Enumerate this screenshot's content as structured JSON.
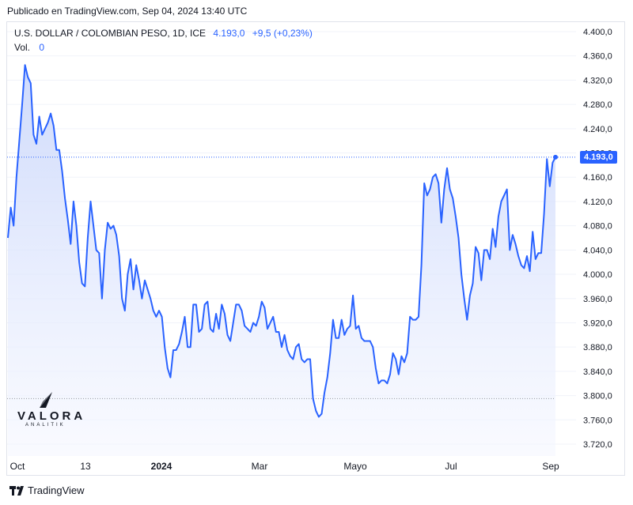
{
  "header": {
    "published": "Publicado en TradingView.com, Sep 04, 2024 13:40 UTC"
  },
  "legend": {
    "symbol": "U.S. DOLLAR / COLOMBIAN PESO, 1D, ICE",
    "value": "4.193,0",
    "change": "+9,5 (+0,23%)",
    "vol_label": "Vol.",
    "vol_value": "0"
  },
  "price_tag": "4.193,0",
  "watermark": {
    "name": "VALORA",
    "sub": "ANALITIK"
  },
  "footer": {
    "brand": "TradingView"
  },
  "colors": {
    "line": "#2962ff",
    "area_top": "#c9d6fb",
    "area_bottom": "#f5f7ff",
    "grid": "#f0f3fa",
    "tag": "#2962ff"
  },
  "chart_data": {
    "type": "area",
    "title": "",
    "xlabel": "",
    "ylabel": "",
    "ylim": [
      3700,
      4420
    ],
    "y_ticks": [
      "4.400,0",
      "4.360,0",
      "4.320,0",
      "4.280,0",
      "4.240,0",
      "4.200,0",
      "4.160,0",
      "4.120,0",
      "4.080,0",
      "4.040,0",
      "4.000,0",
      "3.960,0",
      "3.920,0",
      "3.880,0",
      "3.840,0",
      "3.800,0",
      "3.760,0",
      "3.720,0"
    ],
    "x_ticks": [
      "Oct",
      "13",
      "2024",
      "Mar",
      "Mayo",
      "Jul",
      "Sep"
    ],
    "reference_lines": [
      4193,
      3795
    ],
    "last_value": 4193,
    "series": [
      {
        "values": [
          4060,
          4110,
          4080,
          4160,
          4220,
          4280,
          4345,
          4325,
          4315,
          4230,
          4215,
          4260,
          4230,
          4240,
          4250,
          4265,
          4245,
          4205,
          4205,
          4170,
          4125,
          4090,
          4050,
          4120,
          4080,
          4020,
          3985,
          3980,
          4060,
          4120,
          4080,
          4040,
          4035,
          3960,
          4040,
          4085,
          4075,
          4080,
          4065,
          4030,
          3960,
          3940,
          4000,
          4025,
          3975,
          4015,
          3990,
          3960,
          3990,
          3975,
          3960,
          3940,
          3930,
          3940,
          3930,
          3880,
          3845,
          3830,
          3875,
          3875,
          3885,
          3905,
          3930,
          3880,
          3880,
          3950,
          3950,
          3905,
          3910,
          3950,
          3955,
          3910,
          3905,
          3935,
          3910,
          3950,
          3935,
          3900,
          3890,
          3920,
          3950,
          3950,
          3940,
          3915,
          3910,
          3905,
          3920,
          3915,
          3930,
          3955,
          3945,
          3910,
          3920,
          3930,
          3905,
          3905,
          3880,
          3900,
          3875,
          3865,
          3860,
          3880,
          3885,
          3860,
          3855,
          3860,
          3860,
          3795,
          3775,
          3765,
          3770,
          3805,
          3830,
          3870,
          3925,
          3895,
          3895,
          3925,
          3900,
          3910,
          3915,
          3965,
          3910,
          3915,
          3895,
          3890,
          3890,
          3890,
          3880,
          3845,
          3820,
          3825,
          3825,
          3820,
          3835,
          3870,
          3860,
          3835,
          3865,
          3855,
          3870,
          3930,
          3925,
          3925,
          3930,
          4015,
          4150,
          4130,
          4140,
          4160,
          4165,
          4150,
          4085,
          4140,
          4175,
          4140,
          4125,
          4095,
          4060,
          4000,
          3960,
          3925,
          3965,
          3985,
          4045,
          4035,
          3990,
          4040,
          4040,
          4025,
          4075,
          4045,
          4095,
          4120,
          4130,
          4140,
          4040,
          4065,
          4050,
          4030,
          4015,
          4010,
          4030,
          4005,
          4070,
          4025,
          4035,
          4035,
          4100,
          4190,
          4145,
          4184,
          4193
        ]
      }
    ]
  }
}
